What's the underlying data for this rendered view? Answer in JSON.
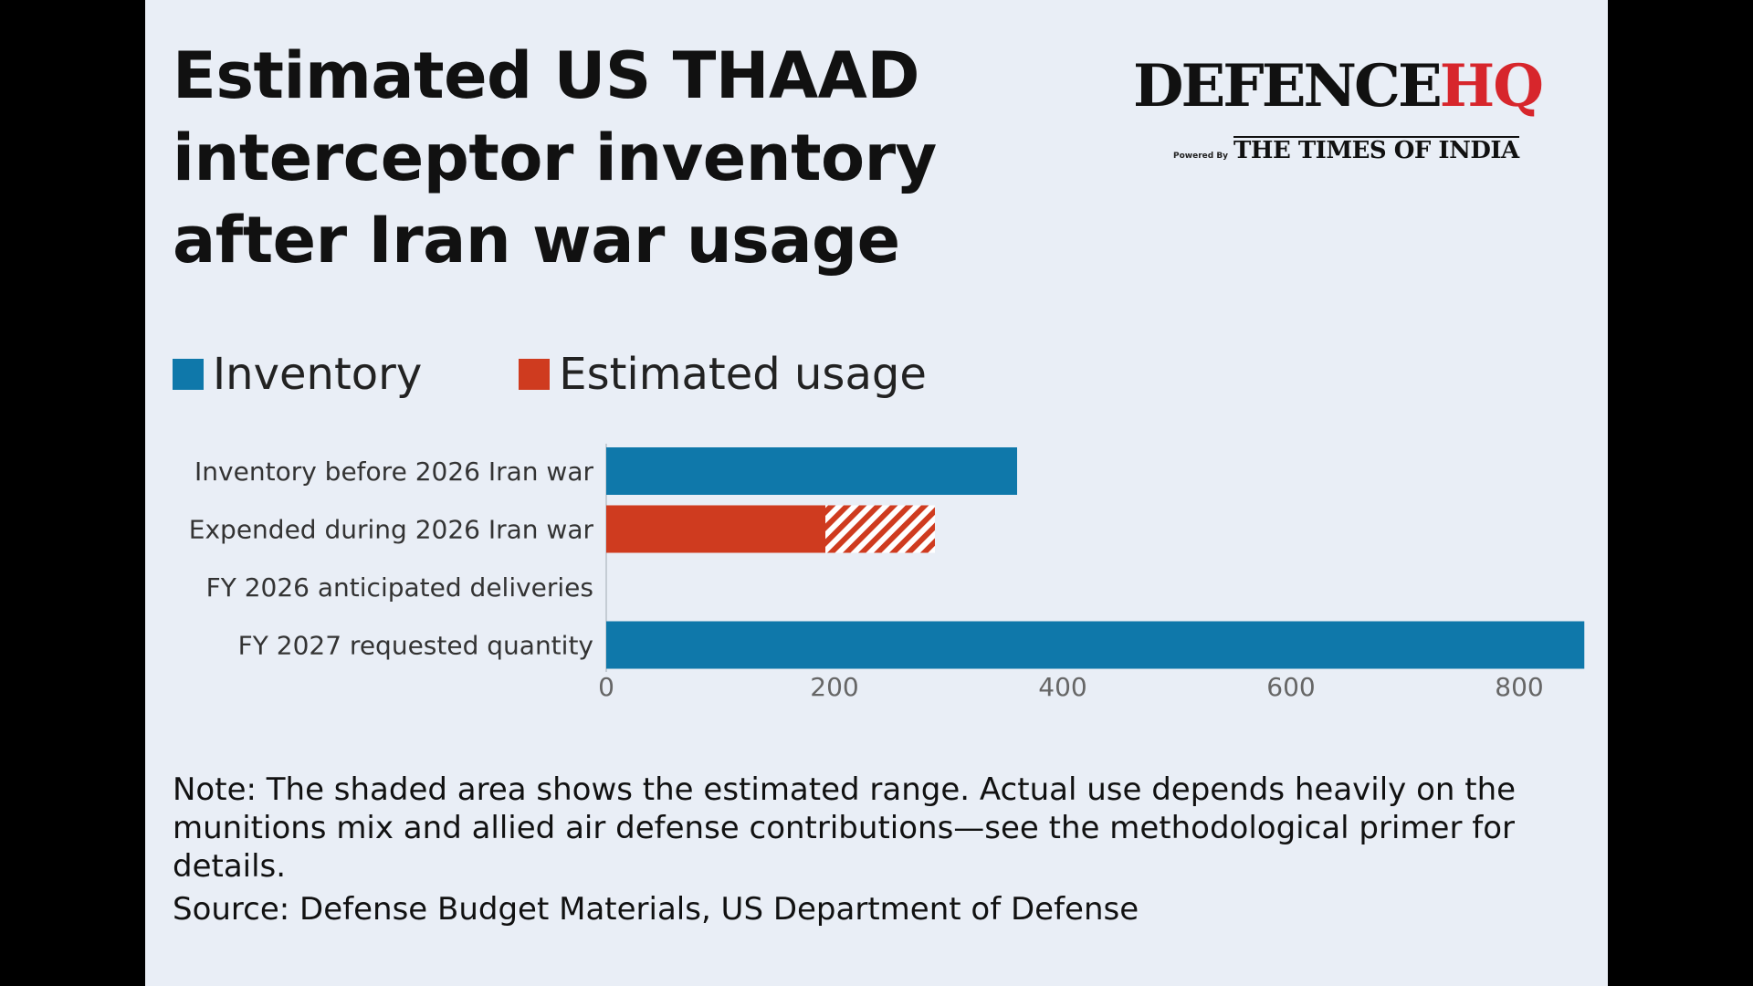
{
  "title_lines": [
    "Estimated US THAAD",
    "interceptor inventory",
    "after Iran war usage"
  ],
  "brand": {
    "name_main": "DEFENCE",
    "name_accent": "HQ",
    "powered_by": "Powered By",
    "publisher": "THE TIMES OF INDIA",
    "accent_color": "#d7262c"
  },
  "legend": [
    {
      "label": "Inventory",
      "color": "#0f78aa"
    },
    {
      "label": "Estimated usage",
      "color": "#cf3b1f"
    }
  ],
  "chart_data": {
    "type": "bar",
    "orientation": "horizontal",
    "categories": [
      "Inventory before 2026 Iran war",
      "Expended during 2026 Iran war",
      "FY 2026 anticipated deliveries",
      "FY 2027 requested quantity"
    ],
    "series": [
      {
        "name": "Inventory",
        "color": "#0f78aa",
        "values": [
          360,
          null,
          0,
          857
        ]
      },
      {
        "name": "Estimated usage",
        "color": "#cf3b1f",
        "values": [
          null,
          192,
          null,
          null
        ],
        "range_high": [
          null,
          288,
          null,
          null
        ]
      }
    ],
    "xticks": [
      0,
      200,
      400,
      600,
      800
    ],
    "xlim": [
      0,
      860
    ],
    "grid": false,
    "legend_position": "top-left"
  },
  "note": "Note: The shaded area shows the estimated range. Actual use depends heavily on the munitions mix and allied air defense contributions—see the methodological primer for details.",
  "source": "Source: Defense Budget Materials, US Department of Defense"
}
